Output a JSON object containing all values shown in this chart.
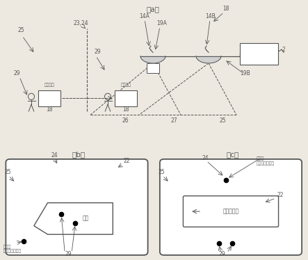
{
  "title_a": "（a）",
  "title_b": "（b）",
  "title_c": "（c）",
  "bg_color": "#ede9e0",
  "line_color": "#555555",
  "dark_color": "#333333",
  "guard_device": "警备装置",
  "guard_terminal": "警备解除",
  "label_b_boat": "小船",
  "label_b_intruder": "可疑人\n（侵入异常者）",
  "label_c_cash": "现金运输车",
  "label_c_intruder": "可疑人\n（侵入异常者）"
}
